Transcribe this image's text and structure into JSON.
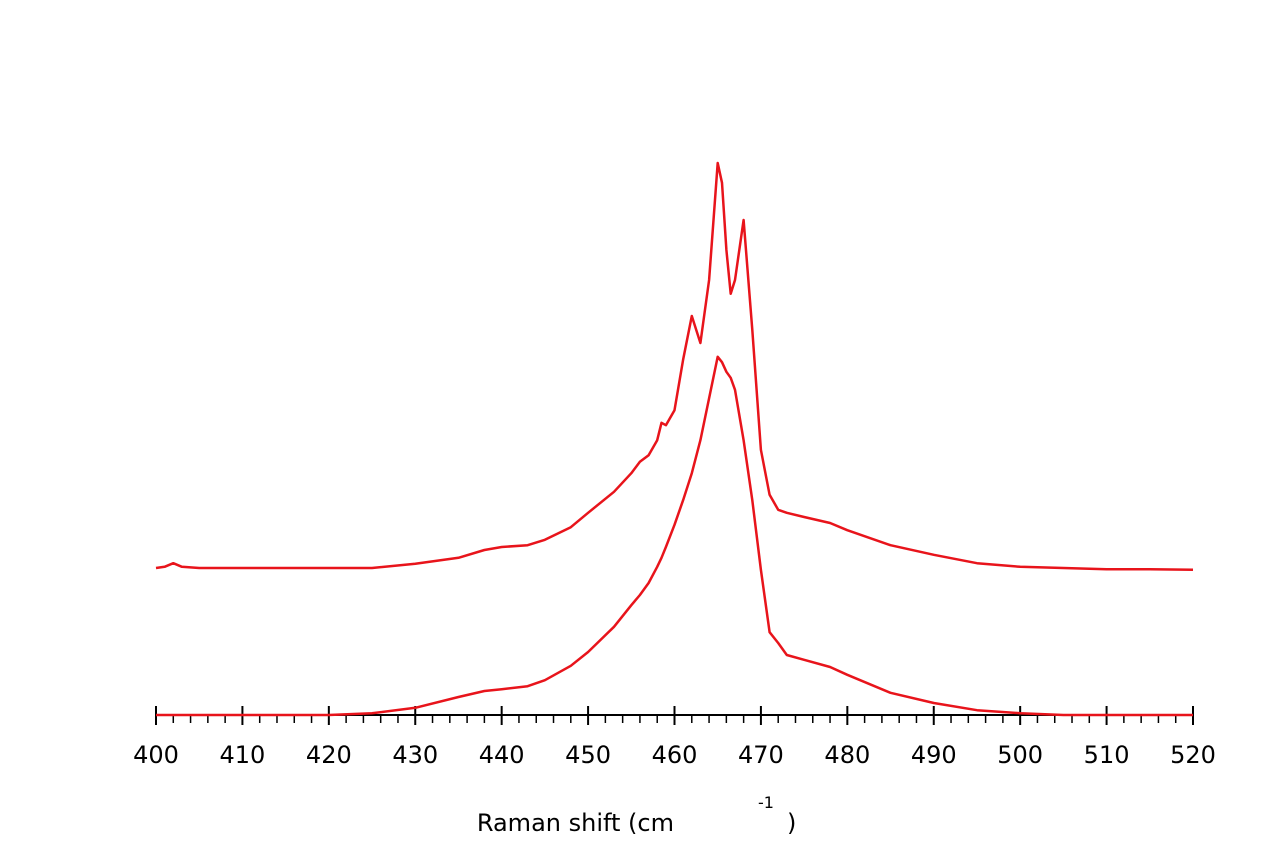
{
  "chart_data": {
    "type": "line",
    "x_label": [
      "Raman shift (cm",
      "-1",
      ")"
    ],
    "x": [
      400,
      401,
      402,
      403,
      405,
      410,
      415,
      420,
      425,
      430,
      435,
      438,
      440,
      443,
      445,
      448,
      450,
      453,
      455,
      456,
      457,
      458,
      458.5,
      459,
      460,
      461,
      462,
      463,
      464,
      465,
      465.5,
      466,
      466.5,
      467,
      468,
      469,
      470,
      471,
      472,
      473,
      475,
      478,
      480,
      485,
      490,
      495,
      500,
      505,
      510,
      515,
      520
    ],
    "series": [
      {
        "color": "#e8141b",
        "values": [
          24.5,
          24.7,
          25.3,
          24.7,
          24.5,
          24.5,
          24.5,
          24.5,
          24.5,
          25.2,
          26.2,
          27.5,
          28,
          28.3,
          29.2,
          31.3,
          33.7,
          37.2,
          40.3,
          42.2,
          43.3,
          45.8,
          48.7,
          48.3,
          50.8,
          59.2,
          66.5,
          62,
          72.5,
          92,
          88.7,
          77.5,
          70.2,
          72.5,
          82.5,
          64.2,
          44.2,
          36.7,
          34.2,
          33.7,
          33,
          32,
          30.8,
          28.3,
          26.7,
          25.3,
          24.7,
          24.5,
          24.3,
          24.3,
          24.2
        ]
      },
      {
        "color": "#e8141b",
        "values": [
          0,
          0,
          0,
          0,
          0,
          0,
          0,
          0,
          0.3,
          1.2,
          3,
          4,
          4.3,
          4.8,
          5.8,
          8.2,
          10.5,
          14.7,
          18.3,
          20,
          22,
          24.7,
          26.2,
          28,
          31.7,
          35.8,
          40.3,
          45.8,
          52.8,
          59.7,
          58.8,
          57.2,
          56.2,
          54.2,
          45.8,
          35.8,
          24.2,
          13.8,
          12,
          10,
          9.2,
          8,
          6.7,
          3.7,
          2,
          0.8,
          0.3,
          0,
          0,
          0,
          0
        ]
      }
    ],
    "xlim": [
      400,
      520
    ],
    "ylim": [
      0,
      100
    ],
    "xticks": [
      400,
      410,
      420,
      430,
      440,
      450,
      460,
      470,
      480,
      490,
      500,
      510,
      520
    ],
    "xminorticks": [
      402,
      404,
      406,
      408,
      412,
      414,
      416,
      418,
      422,
      424,
      426,
      428,
      432,
      434,
      436,
      438,
      442,
      444,
      446,
      448,
      452,
      454,
      456,
      458,
      462,
      464,
      466,
      468,
      472,
      474,
      476,
      478,
      482,
      484,
      486,
      488,
      492,
      494,
      496,
      498,
      502,
      504,
      506,
      508,
      512,
      514,
      516,
      518
    ]
  }
}
